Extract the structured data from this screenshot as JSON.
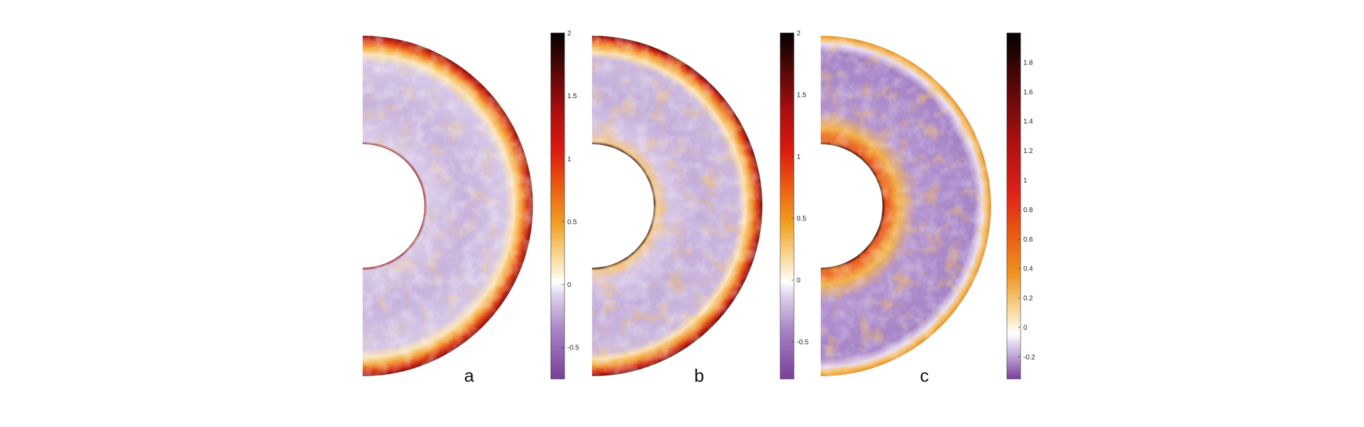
{
  "panels": [
    {
      "id": "a",
      "label": "a",
      "ticks": [
        "2",
        "1.5",
        "1",
        "0.5",
        "0",
        "-0.5"
      ],
      "tick_values": [
        2,
        1.5,
        1,
        0.5,
        0,
        -0.5
      ],
      "range": [
        -0.75,
        2
      ]
    },
    {
      "id": "b",
      "label": "b",
      "ticks": [
        "2",
        "1.5",
        "1",
        "0.5",
        "0",
        "-0.5"
      ],
      "tick_values": [
        2,
        1.5,
        1,
        0.5,
        0,
        -0.5
      ],
      "range": [
        -0.8,
        2
      ]
    },
    {
      "id": "c",
      "label": "c",
      "ticks": [
        "1.8",
        "1.6",
        "1.4",
        "1.2",
        "1",
        "0.8",
        "0.6",
        "0.4",
        "0.2",
        "0",
        "-0.2"
      ],
      "tick_values": [
        1.8,
        1.6,
        1.4,
        1.2,
        1,
        0.8,
        0.6,
        0.4,
        0.2,
        0,
        -0.2
      ],
      "range": [
        -0.35,
        2
      ]
    }
  ],
  "colormap": [
    "#7b3f98",
    "#b08fcb",
    "#e6ddf0",
    "#ffffff",
    "#f7d9a0",
    "#f0a020",
    "#e85a10",
    "#d51010",
    "#8e0a0a",
    "#1a0505"
  ]
}
